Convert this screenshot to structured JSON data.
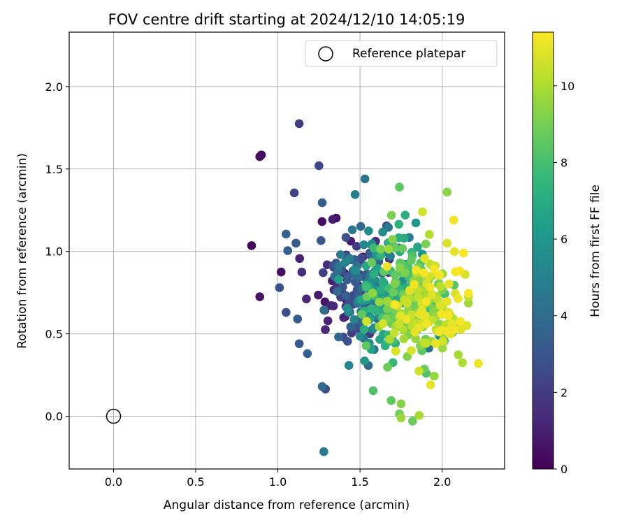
{
  "chart_data": {
    "type": "scatter",
    "title": "FOV centre drift starting at 2024/12/10 14:05:19",
    "xlabel": "Angular distance from reference (arcmin)",
    "ylabel": "Rotation from reference (arcmin)",
    "xlim": [
      -0.27,
      2.38
    ],
    "ylim": [
      -0.32,
      2.33
    ],
    "xticks": [
      0.0,
      0.5,
      1.0,
      1.5,
      2.0
    ],
    "xtick_labels": [
      "0.0",
      "0.5",
      "1.0",
      "1.5",
      "2.0"
    ],
    "yticks": [
      0.0,
      0.5,
      1.0,
      1.5,
      2.0
    ],
    "ytick_labels": [
      "0.0",
      "0.5",
      "1.0",
      "1.5",
      "2.0"
    ],
    "grid": true,
    "legend": {
      "position": "top-right",
      "entries": [
        {
          "label": "Reference platepar",
          "marker": "open-circle",
          "x": 0.0,
          "y": 0.0
        }
      ]
    },
    "colorbar": {
      "label": "Hours from first FF file",
      "colormap": "viridis",
      "range": [
        0,
        11.4
      ],
      "ticks": [
        0,
        2,
        4,
        6,
        8,
        10
      ],
      "tick_labels": [
        "0",
        "2",
        "4",
        "6",
        "8",
        "10"
      ]
    },
    "generated_cluster": {
      "count": 560,
      "seed": 20241210
    },
    "points": [
      {
        "x": 0.9,
        "y": 1.585,
        "c": 0.3
      },
      {
        "x": 0.89,
        "y": 1.575,
        "c": 0.4
      },
      {
        "x": 0.84,
        "y": 1.035,
        "c": 0.2
      },
      {
        "x": 1.02,
        "y": 0.875,
        "c": 0.5
      },
      {
        "x": 0.89,
        "y": 0.725,
        "c": 0.6
      },
      {
        "x": 1.13,
        "y": 1.775,
        "c": 2.0
      },
      {
        "x": 1.25,
        "y": 1.52,
        "c": 2.5
      },
      {
        "x": 1.1,
        "y": 1.355,
        "c": 2.3
      },
      {
        "x": 1.27,
        "y": 1.295,
        "c": 3.4
      },
      {
        "x": 1.05,
        "y": 1.105,
        "c": 3.6
      },
      {
        "x": 1.11,
        "y": 1.05,
        "c": 3.2
      },
      {
        "x": 1.06,
        "y": 1.005,
        "c": 3.5
      },
      {
        "x": 1.01,
        "y": 0.78,
        "c": 2.9
      },
      {
        "x": 1.05,
        "y": 0.63,
        "c": 2.7
      },
      {
        "x": 1.12,
        "y": 0.59,
        "c": 3.3
      },
      {
        "x": 1.13,
        "y": 0.44,
        "c": 3.1
      },
      {
        "x": 1.18,
        "y": 0.38,
        "c": 3.5
      },
      {
        "x": 1.29,
        "y": 0.165,
        "c": 2.6
      },
      {
        "x": 1.27,
        "y": 0.18,
        "c": 3.9
      },
      {
        "x": 1.28,
        "y": -0.215,
        "c": 4.6
      },
      {
        "x": 1.53,
        "y": 1.44,
        "c": 4.4
      },
      {
        "x": 1.47,
        "y": 1.345,
        "c": 4.9
      },
      {
        "x": 1.74,
        "y": 1.39,
        "c": 8.5
      },
      {
        "x": 2.03,
        "y": 1.36,
        "c": 9.4
      },
      {
        "x": 1.88,
        "y": 1.24,
        "c": 10.6
      },
      {
        "x": 2.07,
        "y": 1.19,
        "c": 11.2
      },
      {
        "x": 2.22,
        "y": 0.32,
        "c": 11.1
      },
      {
        "x": 1.58,
        "y": 0.155,
        "c": 8.2
      },
      {
        "x": 1.69,
        "y": 0.095,
        "c": 8.6
      },
      {
        "x": 1.75,
        "y": 0.075,
        "c": 9.3
      },
      {
        "x": 1.74,
        "y": 0.015,
        "c": 8.9
      },
      {
        "x": 1.75,
        "y": -0.01,
        "c": 9.7
      },
      {
        "x": 1.82,
        "y": -0.03,
        "c": 8.8
      },
      {
        "x": 1.86,
        "y": 0.005,
        "c": 9.9
      },
      {
        "x": 1.93,
        "y": 0.19,
        "c": 11.0
      },
      {
        "x": 2.15,
        "y": 0.55,
        "c": 10.9
      },
      {
        "x": 2.14,
        "y": 0.86,
        "c": 10.7
      },
      {
        "x": 2.13,
        "y": 0.99,
        "c": 11.3
      },
      {
        "x": 2.03,
        "y": 1.05,
        "c": 10.8
      },
      {
        "x": 1.9,
        "y": 1.045,
        "c": 9.1
      }
    ]
  }
}
